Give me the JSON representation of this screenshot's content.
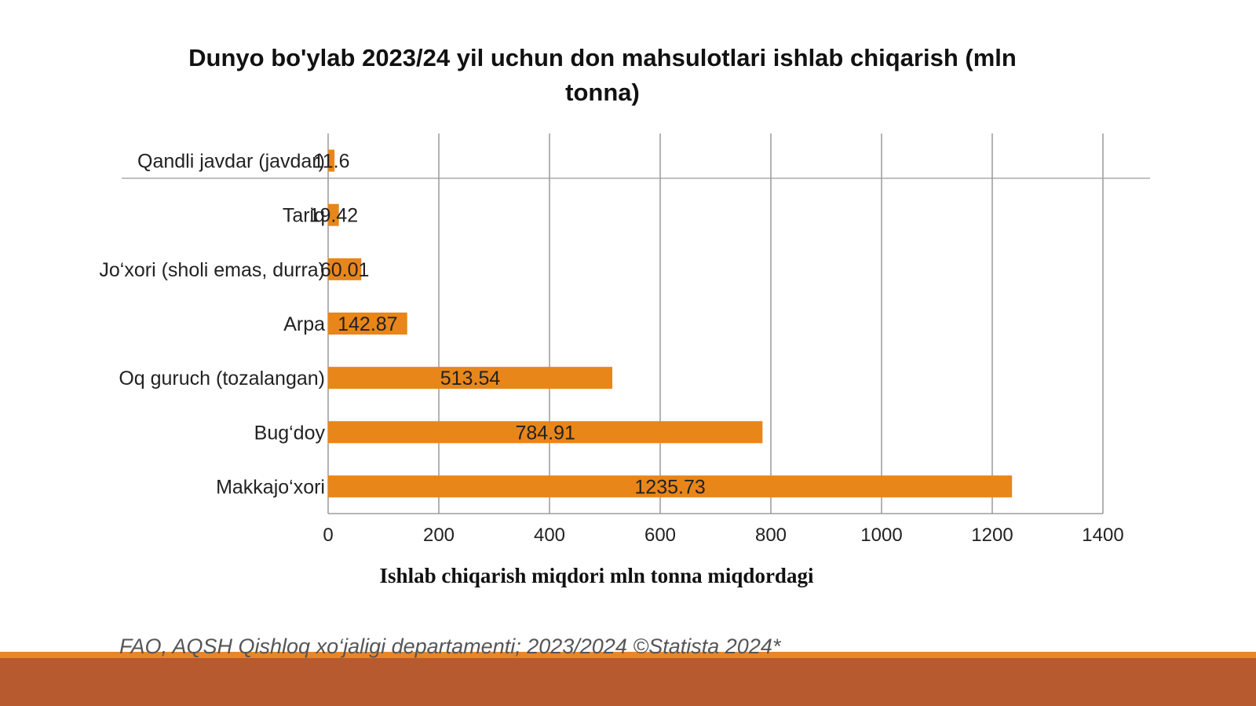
{
  "colors": {
    "bar": "#e8861a",
    "grid": "#8a8a8a",
    "footer_band": "#b85a30",
    "footer_stripe": "#e8862a"
  },
  "chart_data": {
    "type": "bar",
    "orientation": "horizontal",
    "title": "Dunyo bo'ylab 2023/24 yil uchun don mahsulotlari ishlab chiqarish (mln tonna)",
    "xlabel": "Ishlab chiqarish miqdori mln tonna miqdordagi",
    "ylabel": "",
    "categories": [
      "Qandli javdar (javdar)",
      "Tariq",
      "Jo‘xori (sholi emas, durra)",
      "Arpa",
      "Oq guruch (tozalangan)",
      "Bug‘doy",
      "Makkajo‘xori"
    ],
    "values": [
      11.6,
      19.42,
      60.01,
      142.87,
      513.54,
      784.91,
      1235.73
    ],
    "value_labels": [
      "11.6",
      "19.42",
      "60.01",
      "142.87",
      "513.54",
      "784.91",
      "1235.73"
    ],
    "xlim": [
      0,
      1400
    ],
    "x_ticks": [
      0,
      200,
      400,
      600,
      800,
      1000,
      1200,
      1400
    ],
    "x_tick_labels": [
      "0",
      "200",
      "400",
      "600",
      "800",
      "1000",
      "1200",
      "1400"
    ],
    "grid": true,
    "legend": "none"
  },
  "source_note": "FAO, AQSH Qishloq xo‘jaligi departamenti; 2023/2024 ©Statista 2024*"
}
